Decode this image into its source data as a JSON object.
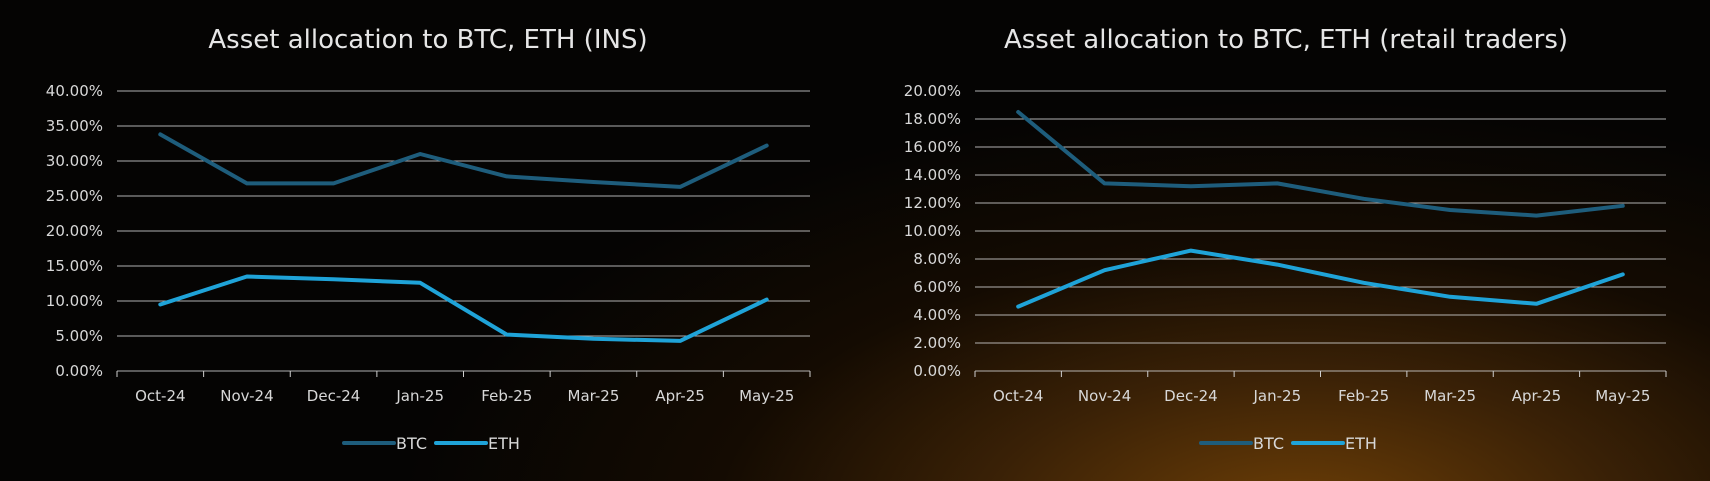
{
  "colors": {
    "background": "#070503",
    "glow": "#6e3f06",
    "gridline": "#cfcfcf",
    "text": "#d8d8d8",
    "title": "#e6e6e6",
    "btc": "#1e5d7c",
    "eth": "#1fa3d8"
  },
  "chart_data": [
    {
      "type": "line",
      "title": "Asset allocation to BTC, ETH (INS)",
      "categories": [
        "Oct-24",
        "Nov-24",
        "Dec-24",
        "Jan-25",
        "Feb-25",
        "Mar-25",
        "Apr-25",
        "May-25"
      ],
      "series": [
        {
          "name": "BTC",
          "values": [
            0.338,
            0.268,
            0.268,
            0.31,
            0.278,
            0.27,
            0.263,
            0.322
          ]
        },
        {
          "name": "ETH",
          "values": [
            0.095,
            0.135,
            0.131,
            0.126,
            0.052,
            0.046,
            0.043,
            0.102
          ]
        }
      ],
      "ylim": [
        0,
        0.4
      ],
      "yticks": [
        "0.00%",
        "5.00%",
        "10.00%",
        "15.00%",
        "20.00%",
        "25.00%",
        "30.00%",
        "35.00%",
        "40.00%"
      ],
      "grid": true,
      "legend": "bottom"
    },
    {
      "type": "line",
      "title": "Asset allocation to BTC, ETH (retail traders)",
      "categories": [
        "Oct-24",
        "Nov-24",
        "Dec-24",
        "Jan-25",
        "Feb-25",
        "Mar-25",
        "Apr-25",
        "May-25"
      ],
      "series": [
        {
          "name": "BTC",
          "values": [
            0.185,
            0.134,
            0.132,
            0.134,
            0.123,
            0.115,
            0.111,
            0.118
          ]
        },
        {
          "name": "ETH",
          "values": [
            0.046,
            0.072,
            0.086,
            0.076,
            0.063,
            0.053,
            0.048,
            0.069
          ]
        }
      ],
      "ylim": [
        0,
        0.2
      ],
      "yticks": [
        "0.00%",
        "2.00%",
        "4.00%",
        "6.00%",
        "8.00%",
        "10.00%",
        "12.00%",
        "14.00%",
        "16.00%",
        "18.00%",
        "20.00%"
      ],
      "grid": true,
      "legend": "bottom"
    }
  ]
}
